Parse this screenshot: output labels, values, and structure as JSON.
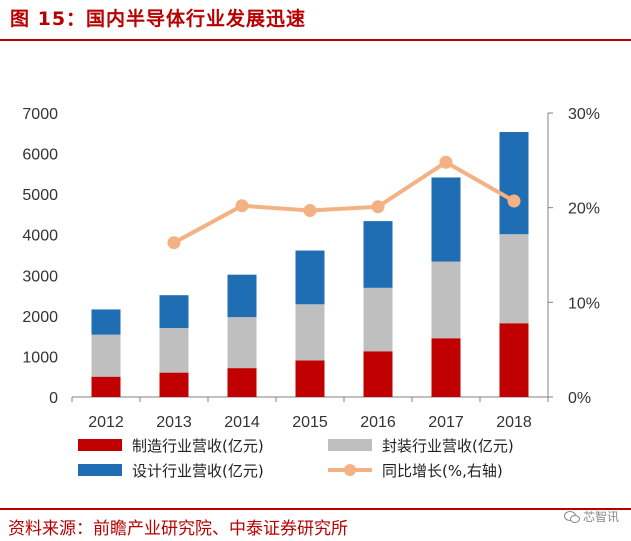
{
  "figure_title": "图 15：国内半导体行业发展迅速",
  "source_note": "资料来源：前瞻产业研究院、中泰证券研究所",
  "watermark": "芯智讯",
  "colors": {
    "manufacturing": "#c00000",
    "packaging": "#bfbfbf",
    "design": "#1f6db3",
    "growth": "#f4b183",
    "accent": "#b80000"
  },
  "chart_data": {
    "type": "bar",
    "stacked": true,
    "categories": [
      "2012",
      "2013",
      "2014",
      "2015",
      "2016",
      "2017",
      "2018"
    ],
    "series": [
      {
        "name": "制造行业营收(亿元)",
        "key": "manufacturing",
        "values": [
          501,
          601,
          712,
          901,
          1127,
          1448,
          1818
        ]
      },
      {
        "name": "封装行业营收(亿元)",
        "key": "packaging",
        "values": [
          1036,
          1099,
          1256,
          1384,
          1564,
          1890,
          2194
        ]
      },
      {
        "name": "设计行业营收(亿元)",
        "key": "design",
        "values": [
          621,
          809,
          1047,
          1325,
          1644,
          2073,
          2519
        ]
      }
    ],
    "line_series": {
      "name": "同比增长(%,右轴)",
      "key": "growth",
      "values": [
        null,
        16.3,
        20.2,
        19.7,
        20.1,
        24.8,
        20.7
      ]
    },
    "y_left": {
      "min": 0,
      "max": 7000,
      "ticks": [
        0,
        1000,
        2000,
        3000,
        4000,
        5000,
        6000,
        7000
      ]
    },
    "y_right": {
      "min": 0,
      "max": 30,
      "ticks": [
        "0%",
        "10%",
        "20%",
        "30%"
      ],
      "tick_values": [
        0,
        10,
        20,
        30
      ]
    },
    "legend_position": "bottom"
  }
}
